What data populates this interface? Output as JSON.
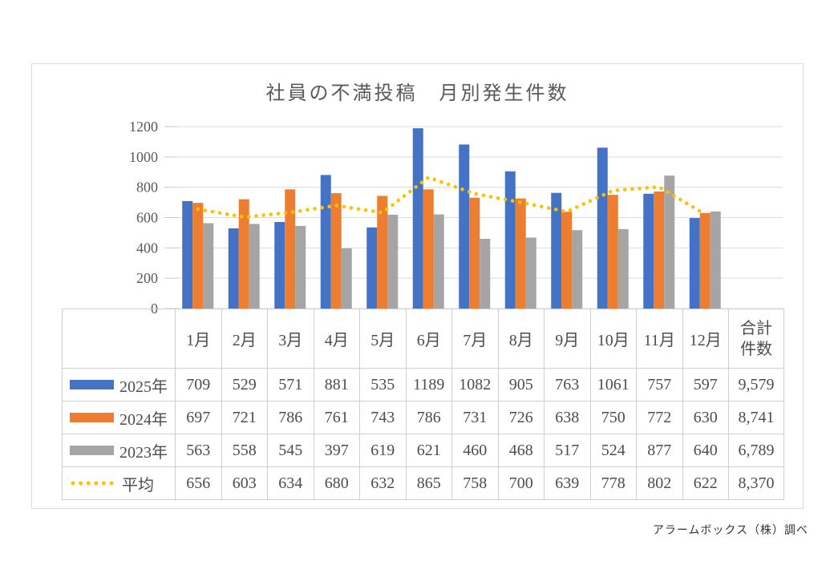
{
  "table": {
    "months": [
      "1月",
      "2月",
      "3月",
      "4月",
      "5月",
      "6月",
      "7月",
      "8月",
      "9月",
      "10月",
      "11月",
      "12月"
    ],
    "total_label": "合計\n件数"
  },
  "source_note": "アラームボックス（株）調べ",
  "chart_data": {
    "type": "bar",
    "title": "社員の不満投稿　月別発生件数",
    "categories": [
      "1月",
      "2月",
      "3月",
      "4月",
      "5月",
      "6月",
      "7月",
      "8月",
      "9月",
      "10月",
      "11月",
      "12月"
    ],
    "ylim": [
      0,
      1200
    ],
    "ytick": 200,
    "grid": true,
    "legend_position": "table-left",
    "series": [
      {
        "name": "2025年",
        "type": "bar",
        "color": "#4472C4",
        "values": [
          709,
          529,
          571,
          881,
          535,
          1189,
          1082,
          905,
          763,
          1061,
          757,
          597
        ],
        "total": "9,579"
      },
      {
        "name": "2024年",
        "type": "bar",
        "color": "#ED7D31",
        "values": [
          697,
          721,
          786,
          761,
          743,
          786,
          731,
          726,
          638,
          750,
          772,
          630
        ],
        "total": "8,741"
      },
      {
        "name": "2023年",
        "type": "bar",
        "color": "#A5A5A5",
        "values": [
          563,
          558,
          545,
          397,
          619,
          621,
          460,
          468,
          517,
          524,
          877,
          640
        ],
        "total": "6,789"
      },
      {
        "name": "平均",
        "type": "line",
        "color": "#FFC000",
        "values": [
          656,
          603,
          634,
          680,
          632,
          865,
          758,
          700,
          639,
          778,
          802,
          622
        ],
        "total": "8,370"
      }
    ]
  }
}
